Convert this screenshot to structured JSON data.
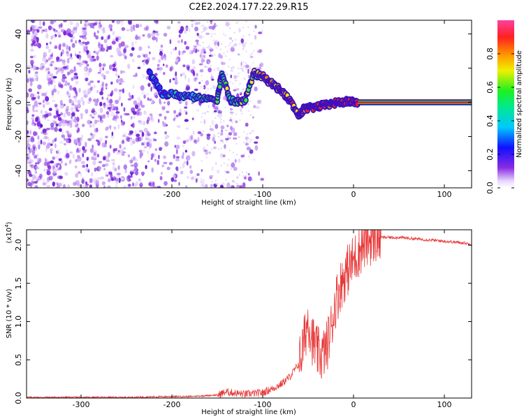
{
  "title": "C2E2.2024.177.22.29.R15",
  "chart_data": [
    {
      "type": "heatmap",
      "xlabel": "Height of straight line (km)",
      "ylabel": "Frequency (Hz)",
      "xlim": [
        -360,
        130
      ],
      "ylim": [
        -50,
        48
      ],
      "xticks": [
        -300,
        -200,
        -100,
        0,
        100
      ],
      "yticks": [
        -40,
        -20,
        0,
        20,
        40
      ],
      "colorbar": {
        "label": "Normalized spectral amplitude",
        "range": [
          0,
          1
        ],
        "ticks": [
          "0.0",
          "0.2",
          "0.4",
          "0.6",
          "0.8"
        ],
        "colormap": "rainbow (white-violet-blue-cyan-green-yellow-red-magenta)"
      },
      "trace": [
        {
          "x": -225,
          "y": 17
        },
        {
          "x": -210,
          "y": 5
        },
        {
          "x": -190,
          "y": 4
        },
        {
          "x": -170,
          "y": 3
        },
        {
          "x": -150,
          "y": 2
        },
        {
          "x": -145,
          "y": 17
        },
        {
          "x": -135,
          "y": 1
        },
        {
          "x": -120,
          "y": 0
        },
        {
          "x": -110,
          "y": 17
        },
        {
          "x": -100,
          "y": 15
        },
        {
          "x": -90,
          "y": 11
        },
        {
          "x": -80,
          "y": 7
        },
        {
          "x": -70,
          "y": 1
        },
        {
          "x": -60,
          "y": -8
        },
        {
          "x": -55,
          "y": -4
        },
        {
          "x": -45,
          "y": -3
        },
        {
          "x": -35,
          "y": -2
        },
        {
          "x": -25,
          "y": -1
        },
        {
          "x": -15,
          "y": 0
        },
        {
          "x": -5,
          "y": 0.5
        },
        {
          "x": 5,
          "y": 0
        },
        {
          "x": 130,
          "y": 0
        }
      ]
    },
    {
      "type": "line",
      "xlabel": "Height of straight line (km)",
      "ylabel": "SNR (10 * v/v)",
      "multiplier": "(x10",
      "multiplier_exp": "4",
      "xlim": [
        -360,
        130
      ],
      "ylim": [
        0,
        2.2
      ],
      "xticks": [
        -300,
        -200,
        -100,
        0,
        100
      ],
      "yticks": [
        "0.0",
        "0.5",
        "1.0",
        "1.5",
        "2.0"
      ],
      "color": "#e83a3a",
      "series": [
        {
          "x": [
            -360,
            -300,
            -250,
            -200,
            -180,
            -150,
            -140,
            -120,
            -100,
            -90,
            -80,
            -70,
            -60,
            -55,
            -50,
            -45,
            -40,
            -35,
            -30,
            -25,
            -20,
            -15,
            -10,
            -5,
            0,
            5,
            10,
            15,
            20,
            25,
            30,
            40,
            50,
            60,
            70,
            80,
            90,
            100,
            110,
            120,
            130
          ],
          "y": [
            0.01,
            0.01,
            0.01,
            0.02,
            0.02,
            0.04,
            0.08,
            0.05,
            0.07,
            0.12,
            0.18,
            0.28,
            0.45,
            0.7,
            1.05,
            0.75,
            0.6,
            0.55,
            0.65,
            0.9,
            1.25,
            1.45,
            1.6,
            1.7,
            1.8,
            1.9,
            2.0,
            2.05,
            2.08,
            2.1,
            2.1,
            2.1,
            2.1,
            2.09,
            2.08,
            2.07,
            2.06,
            2.05,
            2.04,
            2.03,
            2.01
          ]
        }
      ]
    }
  ]
}
